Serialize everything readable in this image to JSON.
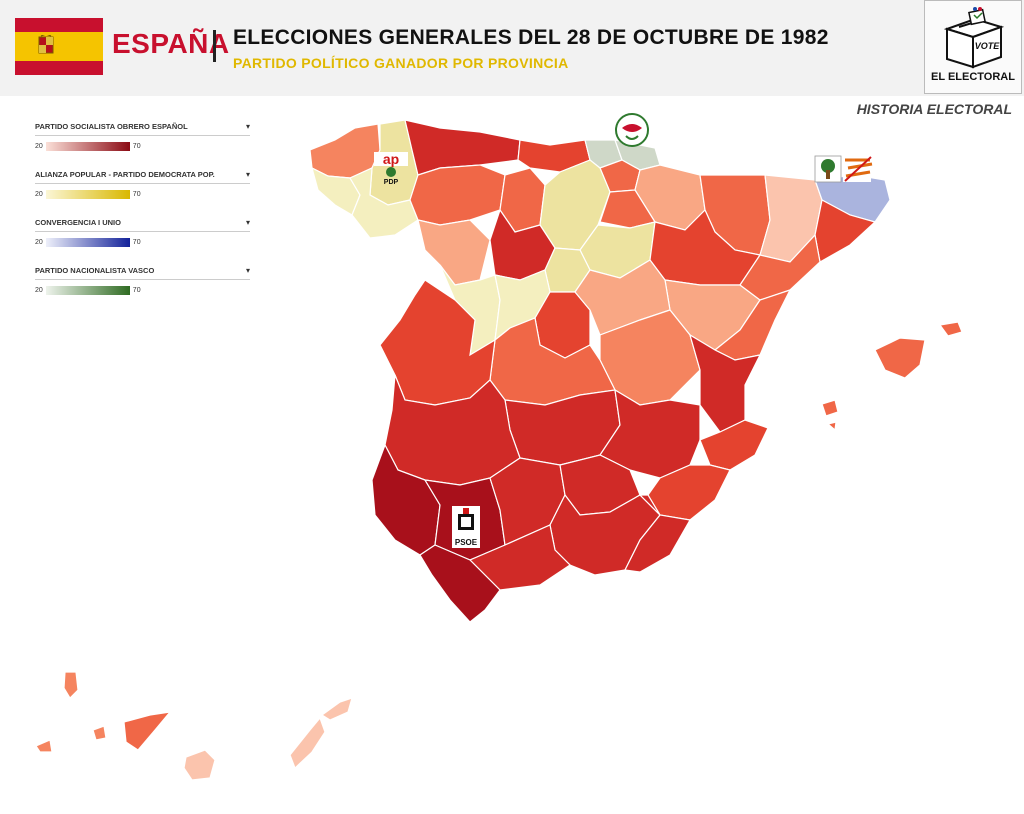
{
  "header": {
    "country": "ESPAÑA",
    "title": "ELECCIONES GENERALES DEL 28 DE OCTUBRE DE 1982",
    "subtitle": "PARTIDO POLÍTICO GANADOR POR PROVINCIA",
    "logo_vote": "VOTE",
    "logo_text": "EL ELECTORAL",
    "historia": "HISTORIA ELECTORAL"
  },
  "legend": [
    {
      "name": "PARTIDO SOCIALISTA OBRERO ESPAÑOL",
      "min": "20",
      "max": "70",
      "color_low": "#fbe0d8",
      "color_high": "#8b0a14"
    },
    {
      "name": "ALIANZA POPULAR - PARTIDO DEMOCRATA POP.",
      "min": "20",
      "max": "70",
      "color_low": "#fbf6d6",
      "color_high": "#d9b800"
    },
    {
      "name": "CONVERGENCIA I UNIO",
      "min": "20",
      "max": "70",
      "color_low": "#eef0fa",
      "color_high": "#13229a"
    },
    {
      "name": "PARTIDO NACIONALISTA VASCO",
      "min": "20",
      "max": "70",
      "color_low": "#eef3ec",
      "color_high": "#2f6b22"
    }
  ],
  "party_logos": {
    "ap": "ap",
    "pdp": "PDP",
    "psoe": "PSOE"
  },
  "colors": {
    "psoe_1": "#fbc4ad",
    "psoe_2": "#f9a784",
    "psoe_3": "#f5845f",
    "psoe_4": "#f06747",
    "psoe_5": "#e4432f",
    "psoe_6": "#d02a27",
    "psoe_7": "#a8101b",
    "ap_1": "#f4efbf",
    "ap_2": "#ede3a0",
    "pnv": "#cfd8c8",
    "ciu": "#aab4de"
  }
}
